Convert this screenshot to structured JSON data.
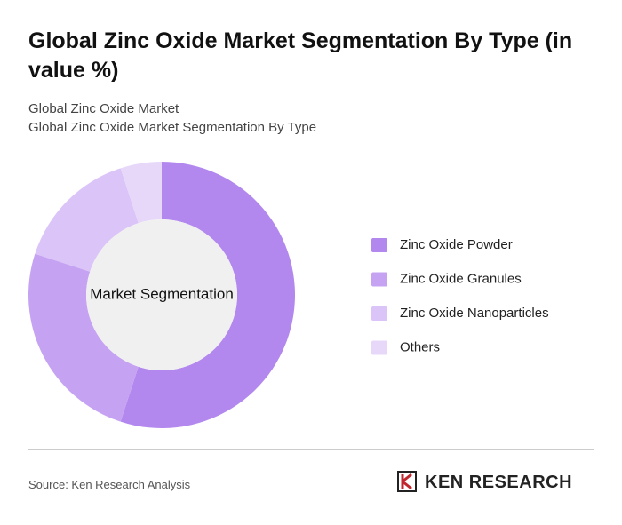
{
  "chart_data": {
    "type": "donut",
    "title": "Global Zinc Oxide Market Segmentation By Type (in value %)",
    "subtitle": [
      "Global Zinc Oxide Market",
      "Global Zinc Oxide Market Segmentation By Type"
    ],
    "center_label": "Market Segmentation",
    "categories": [
      "Zinc Oxide Powder",
      "Zinc Oxide Granules",
      "Zinc Oxide Nanoparticles",
      "Others"
    ],
    "values": [
      55,
      25,
      15,
      5
    ],
    "colors": [
      "#b388ee",
      "#c6a3f2",
      "#dbc4f7",
      "#e7d8fa"
    ]
  },
  "footer": {
    "source": "Source: Ken Research Analysis",
    "brand": "KEN RESEARCH"
  }
}
